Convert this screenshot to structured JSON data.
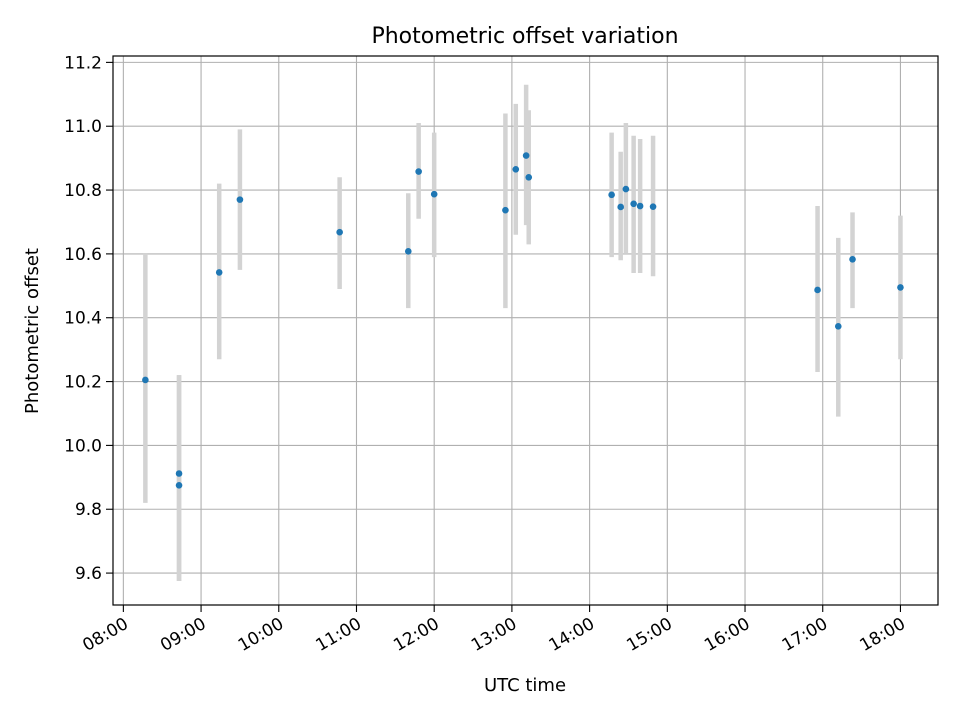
{
  "chart_data": {
    "type": "scatter",
    "title": "Photometric offset variation",
    "xlabel": "UTC time",
    "ylabel": "Photometric offset",
    "x_unit": "time-of-day",
    "xlim": [
      "07:52",
      "18:29"
    ],
    "ylim": [
      9.5,
      11.22
    ],
    "x_ticks": [
      "08:00",
      "09:00",
      "10:00",
      "11:00",
      "12:00",
      "13:00",
      "14:00",
      "15:00",
      "16:00",
      "17:00",
      "18:00"
    ],
    "y_ticks": [
      "9.6",
      "9.8",
      "10.0",
      "10.2",
      "10.4",
      "10.6",
      "10.8",
      "11.0",
      "11.2"
    ],
    "grid": true,
    "legend": "none",
    "colors": {
      "point": "#1f77b4",
      "errorbar": "#d3d3d3",
      "grid": "#b0b0b0"
    },
    "points": [
      {
        "x": "08:17",
        "y": 10.205,
        "ylow": 9.82,
        "yhigh": 10.6
      },
      {
        "x": "08:43",
        "y": 9.912,
        "ylow": 9.575,
        "yhigh": 10.22
      },
      {
        "x": "08:43",
        "y": 9.875,
        "ylow": 9.575,
        "yhigh": 10.22
      },
      {
        "x": "09:14",
        "y": 10.542,
        "ylow": 10.27,
        "yhigh": 10.82
      },
      {
        "x": "09:30",
        "y": 10.77,
        "ylow": 10.55,
        "yhigh": 10.99
      },
      {
        "x": "10:47",
        "y": 10.668,
        "ylow": 10.49,
        "yhigh": 10.84
      },
      {
        "x": "11:40",
        "y": 10.608,
        "ylow": 10.43,
        "yhigh": 10.79
      },
      {
        "x": "11:48",
        "y": 10.858,
        "ylow": 10.71,
        "yhigh": 11.01
      },
      {
        "x": "12:00",
        "y": 10.787,
        "ylow": 10.59,
        "yhigh": 10.98
      },
      {
        "x": "12:55",
        "y": 10.737,
        "ylow": 10.43,
        "yhigh": 11.04
      },
      {
        "x": "13:03",
        "y": 10.865,
        "ylow": 10.66,
        "yhigh": 11.07
      },
      {
        "x": "13:11",
        "y": 10.908,
        "ylow": 10.69,
        "yhigh": 11.13
      },
      {
        "x": "13:13",
        "y": 10.84,
        "ylow": 10.63,
        "yhigh": 11.05
      },
      {
        "x": "14:17",
        "y": 10.785,
        "ylow": 10.59,
        "yhigh": 10.98
      },
      {
        "x": "14:24",
        "y": 10.747,
        "ylow": 10.58,
        "yhigh": 10.92
      },
      {
        "x": "14:28",
        "y": 10.803,
        "ylow": 10.6,
        "yhigh": 11.01
      },
      {
        "x": "14:34",
        "y": 10.757,
        "ylow": 10.54,
        "yhigh": 10.97
      },
      {
        "x": "14:39",
        "y": 10.75,
        "ylow": 10.54,
        "yhigh": 10.96
      },
      {
        "x": "14:49",
        "y": 10.748,
        "ylow": 10.53,
        "yhigh": 10.97
      },
      {
        "x": "16:56",
        "y": 10.487,
        "ylow": 10.23,
        "yhigh": 10.75
      },
      {
        "x": "17:12",
        "y": 10.373,
        "ylow": 10.09,
        "yhigh": 10.65
      },
      {
        "x": "17:23",
        "y": 10.583,
        "ylow": 10.43,
        "yhigh": 10.73
      },
      {
        "x": "18:00",
        "y": 10.495,
        "ylow": 10.27,
        "yhigh": 10.72
      }
    ]
  }
}
